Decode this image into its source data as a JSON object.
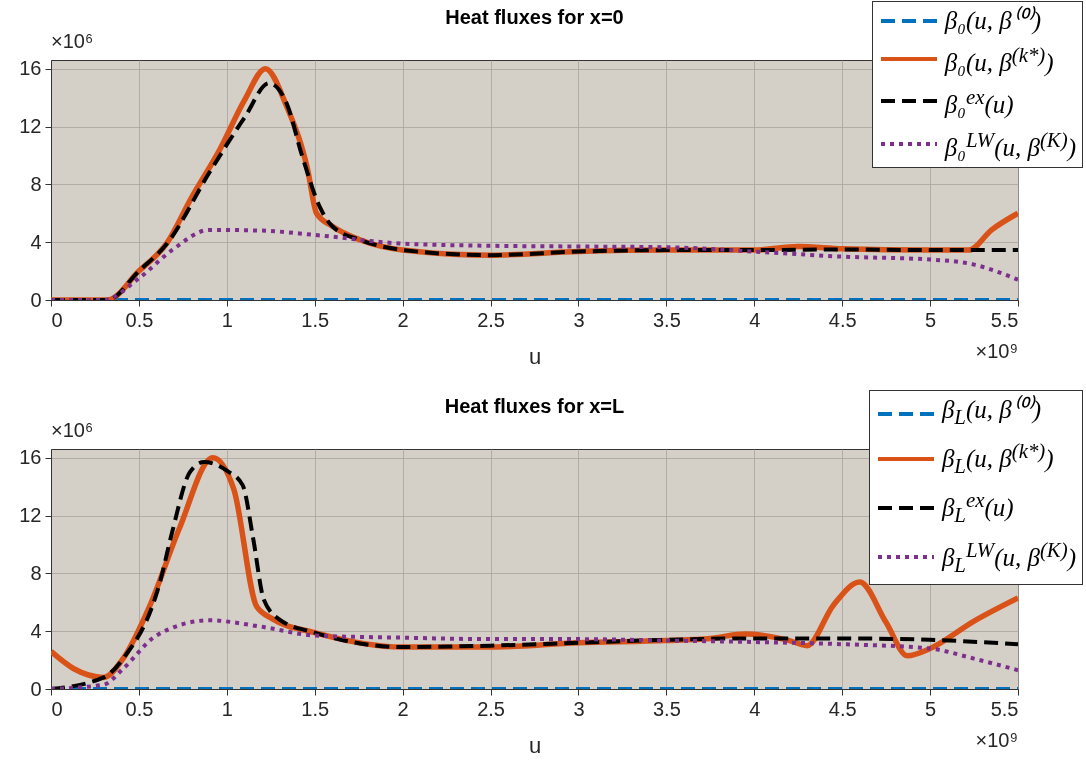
{
  "chart_data": [
    {
      "type": "line",
      "title": "Heat fluxes for x=0",
      "xlabel": "u",
      "xlim": [
        0,
        5.5
      ],
      "xticks": [
        0,
        0.5,
        1,
        1.5,
        2,
        2.5,
        3,
        3.5,
        4,
        4.5,
        5,
        5.5
      ],
      "ylim": [
        0,
        16.6
      ],
      "yticks": [
        0,
        4,
        8,
        12,
        16
      ],
      "grid": true,
      "legend": "top right",
      "annotations": [
        "×10⁶",
        "×10⁹"
      ],
      "series": [
        {
          "name": "β₀(u, β⁽⁰⁾)",
          "color": "#0072bd",
          "line_style": "dashed",
          "x": [
            0,
            5.5
          ],
          "values": [
            0,
            0
          ]
        },
        {
          "name": "β₀(u, β$^{(k*)}$)",
          "color": "#d95319",
          "line_style": "solid",
          "x": [
            0,
            0.32,
            0.5,
            0.66,
            0.8,
            0.96,
            1.1,
            1.22,
            1.34,
            1.46,
            1.51,
            1.6,
            1.76,
            2,
            2.5,
            3,
            3.5,
            4,
            4.25,
            4.5,
            5,
            5.22,
            5.35,
            5.5
          ],
          "values": [
            0,
            0,
            2,
            3.95,
            7.1,
            10.4,
            13.8,
            16,
            13.4,
            9,
            6,
            5.1,
            4.15,
            3.46,
            3.1,
            3.35,
            3.45,
            3.45,
            3.7,
            3.55,
            3.45,
            3.45,
            4.85,
            6
          ]
        },
        {
          "name": "β₀$^{ex}$(u)",
          "color": "#000000",
          "line_style": "dashed",
          "x": [
            0,
            0.32,
            0.5,
            0.66,
            0.9,
            1.1,
            1.24,
            1.34,
            1.43,
            1.53,
            1.6,
            1.76,
            2,
            2.5,
            3,
            3.5,
            4,
            4.5,
            5,
            5.5
          ],
          "values": [
            0,
            0,
            2,
            3.9,
            8.8,
            12.6,
            15,
            13.6,
            9.9,
            6.4,
            5.1,
            4.15,
            3.46,
            3.1,
            3.35,
            3.45,
            3.45,
            3.5,
            3.45,
            3.45
          ]
        },
        {
          "name": "β₀$^{LW}$(u, β$^{(K)}$)",
          "color": "#7e2f8e",
          "line_style": "dotted",
          "x": [
            0,
            0.3,
            0.5,
            0.69,
            0.9,
            1.2,
            1.5,
            2,
            2.5,
            3,
            3.5,
            4,
            4.5,
            5,
            5.25,
            5.5
          ],
          "values": [
            0,
            0,
            1.5,
            3.46,
            4.85,
            4.8,
            4.5,
            3.9,
            3.75,
            3.7,
            3.65,
            3.35,
            3.0,
            2.8,
            2.45,
            1.4
          ]
        }
      ]
    },
    {
      "type": "line",
      "title": "Heat fluxes for x=L",
      "xlabel": "u",
      "xlim": [
        0,
        5.5
      ],
      "xticks": [
        0,
        0.5,
        1,
        1.5,
        2,
        2.5,
        3,
        3.5,
        4,
        4.5,
        5,
        5.5
      ],
      "ylim": [
        0,
        16.6
      ],
      "yticks": [
        0,
        4,
        8,
        12,
        16
      ],
      "grid": true,
      "legend": "top right",
      "annotations": [
        "×10⁶",
        "×10⁹"
      ],
      "series": [
        {
          "name": "β$_{L}$(u, β⁽⁰⁾)",
          "color": "#0072bd",
          "line_style": "dashed",
          "x": [
            0,
            5.5
          ],
          "values": [
            0,
            0
          ]
        },
        {
          "name": "β$_{L}$(u, β$^{(k*)}$)",
          "color": "#d95319",
          "line_style": "solid",
          "x": [
            0,
            0.13,
            0.3,
            0.41,
            0.56,
            0.73,
            0.92,
            1.04,
            1.17,
            1.26,
            1.5,
            2,
            2.5,
            3,
            3.5,
            3.75,
            3.95,
            4.2,
            4.3,
            4.45,
            4.6,
            4.75,
            4.87,
            5,
            5.25,
            5.5
          ],
          "values": [
            2.6,
            1.4,
            0.8,
            2.1,
            5.7,
            11.1,
            16,
            13.8,
            5.7,
            4.85,
            3.9,
            2.9,
            2.9,
            3.2,
            3.35,
            3.5,
            3.8,
            3.35,
            3.0,
            5.8,
            7.4,
            4.6,
            2.3,
            2.8,
            4.7,
            6.3
          ]
        },
        {
          "name": "β$_{L}$$^{ex}$(u)",
          "color": "#000000",
          "line_style": "dashed",
          "x": [
            0,
            0.3,
            0.41,
            0.62,
            0.69,
            0.79,
            0.87,
            1,
            1.09,
            1.15,
            1.21,
            1.3,
            1.5,
            2,
            2.5,
            3,
            3.5,
            4,
            4.5,
            5,
            5.5
          ],
          "values": [
            0,
            0.8,
            2.1,
            7.4,
            10.9,
            15,
            15.7,
            15.1,
            14.1,
            10.4,
            6.2,
            4.8,
            3.9,
            2.9,
            3.0,
            3.2,
            3.4,
            3.5,
            3.5,
            3.4,
            3.1
          ]
        },
        {
          "name": "β$_{L}$$^{LW}$(u, β$^{(K)}$)",
          "color": "#7e2f8e",
          "line_style": "dotted",
          "x": [
            0,
            0.3,
            0.41,
            0.6,
            0.9,
            1.2,
            1.5,
            2,
            2.5,
            3,
            3.5,
            4,
            4.5,
            5,
            5.25,
            5.5
          ],
          "values": [
            0,
            0.3,
            1.4,
            3.7,
            4.75,
            4.3,
            3.7,
            3.55,
            3.45,
            3.45,
            3.35,
            3.25,
            3.1,
            2.8,
            2.1,
            1.3
          ]
        }
      ]
    }
  ]
}
